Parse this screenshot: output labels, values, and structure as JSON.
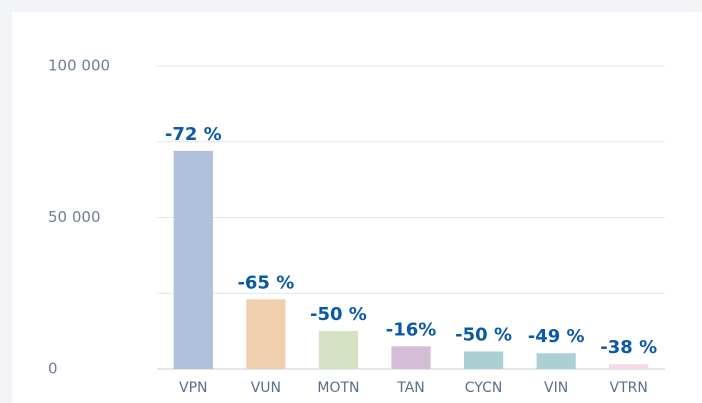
{
  "chart_data": {
    "type": "bar",
    "categories": [
      "VPN",
      "VUN",
      "MOTN",
      "TAN",
      "CYCN",
      "VIN",
      "VTRN"
    ],
    "values": [
      72000,
      23000,
      12500,
      7500,
      5800,
      5200,
      1600
    ],
    "colors": [
      "#b0c1dc",
      "#f0cfae",
      "#d6e0c2",
      "#d3bdd7",
      "#abd0d4",
      "#abd0d4",
      "#f6d8e2"
    ],
    "annotations": [
      "-72 %",
      "-65 %",
      "-50 %",
      "-16%",
      "-50 %",
      "-49 %",
      "-38 %"
    ],
    "ylim": [
      0,
      100000
    ],
    "yticks": [
      0,
      {
        "value": 50000,
        "label": "50 000"
      },
      {
        "value": 100000,
        "label": "100 000"
      }
    ],
    "minor_yticks": [
      25000,
      75000
    ],
    "grid": true
  }
}
